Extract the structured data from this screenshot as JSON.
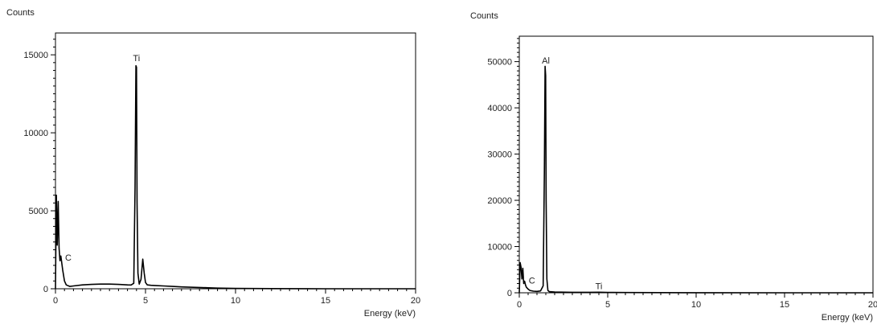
{
  "chart_data": [
    {
      "type": "line",
      "title": "",
      "ylabel": "Counts",
      "xlabel": "Energy (keV)",
      "xlim": [
        0,
        20
      ],
      "ylim": [
        0,
        16400
      ],
      "xticks": [
        0,
        5,
        10,
        15,
        20
      ],
      "yticks": [
        0,
        5000,
        10000,
        15000
      ],
      "grid": false,
      "series": [
        {
          "x": [
            0,
            0.05,
            0.1,
            0.15,
            0.2,
            0.25,
            0.3,
            0.4,
            0.5,
            0.6,
            0.8,
            1.0,
            1.5,
            2.0,
            2.5,
            3.0,
            3.5,
            4.0,
            4.2,
            4.35,
            4.42,
            4.47,
            4.5,
            4.53,
            4.58,
            4.65,
            4.75,
            4.85,
            4.93,
            5.0,
            5.1,
            5.3,
            5.6,
            6.0,
            6.5,
            7.0,
            7.5,
            8.0,
            8.5,
            9.0,
            10,
            12,
            15,
            20
          ],
          "values": [
            0,
            6000,
            2800,
            5600,
            2600,
            1800,
            2100,
            1200,
            500,
            250,
            150,
            180,
            250,
            280,
            300,
            300,
            280,
            250,
            240,
            350,
            6500,
            14300,
            14200,
            5500,
            1000,
            300,
            600,
            1900,
            1000,
            400,
            250,
            220,
            200,
            180,
            150,
            120,
            100,
            80,
            60,
            40,
            20,
            10,
            0,
            0
          ]
        }
      ],
      "annotations": [
        {
          "text": "Ti",
          "x": 4.5,
          "y": 14600
        },
        {
          "text": "C",
          "x": 0.4,
          "y": 1800
        }
      ]
    },
    {
      "type": "line",
      "title": "",
      "ylabel": "Counts",
      "xlabel": "Energy (keV)",
      "xlim": [
        0,
        20
      ],
      "ylim": [
        0,
        55500
      ],
      "xticks": [
        0,
        5,
        10,
        15,
        20
      ],
      "yticks": [
        0,
        10000,
        20000,
        30000,
        40000,
        50000
      ],
      "grid": false,
      "series": [
        {
          "x": [
            0,
            0.05,
            0.1,
            0.15,
            0.2,
            0.25,
            0.3,
            0.35,
            0.4,
            0.5,
            0.6,
            0.8,
            1.0,
            1.2,
            1.35,
            1.42,
            1.46,
            1.49,
            1.52,
            1.56,
            1.62,
            1.7,
            2.0,
            3.0,
            4.0,
            4.5,
            5.0,
            6.0,
            8.0,
            10,
            15,
            20
          ],
          "values": [
            0,
            6500,
            5500,
            3000,
            5300,
            2000,
            2500,
            1700,
            1200,
            800,
            500,
            350,
            300,
            400,
            1500,
            26000,
            49000,
            47000,
            20000,
            3000,
            500,
            250,
            150,
            100,
            100,
            120,
            80,
            50,
            30,
            20,
            0,
            0
          ]
        }
      ],
      "annotations": [
        {
          "text": "Al",
          "x": 1.5,
          "y": 49600
        },
        {
          "text": "C",
          "x": 0.4,
          "y": 2000
        },
        {
          "text": "Ti",
          "x": 4.5,
          "y": 800
        }
      ]
    }
  ]
}
